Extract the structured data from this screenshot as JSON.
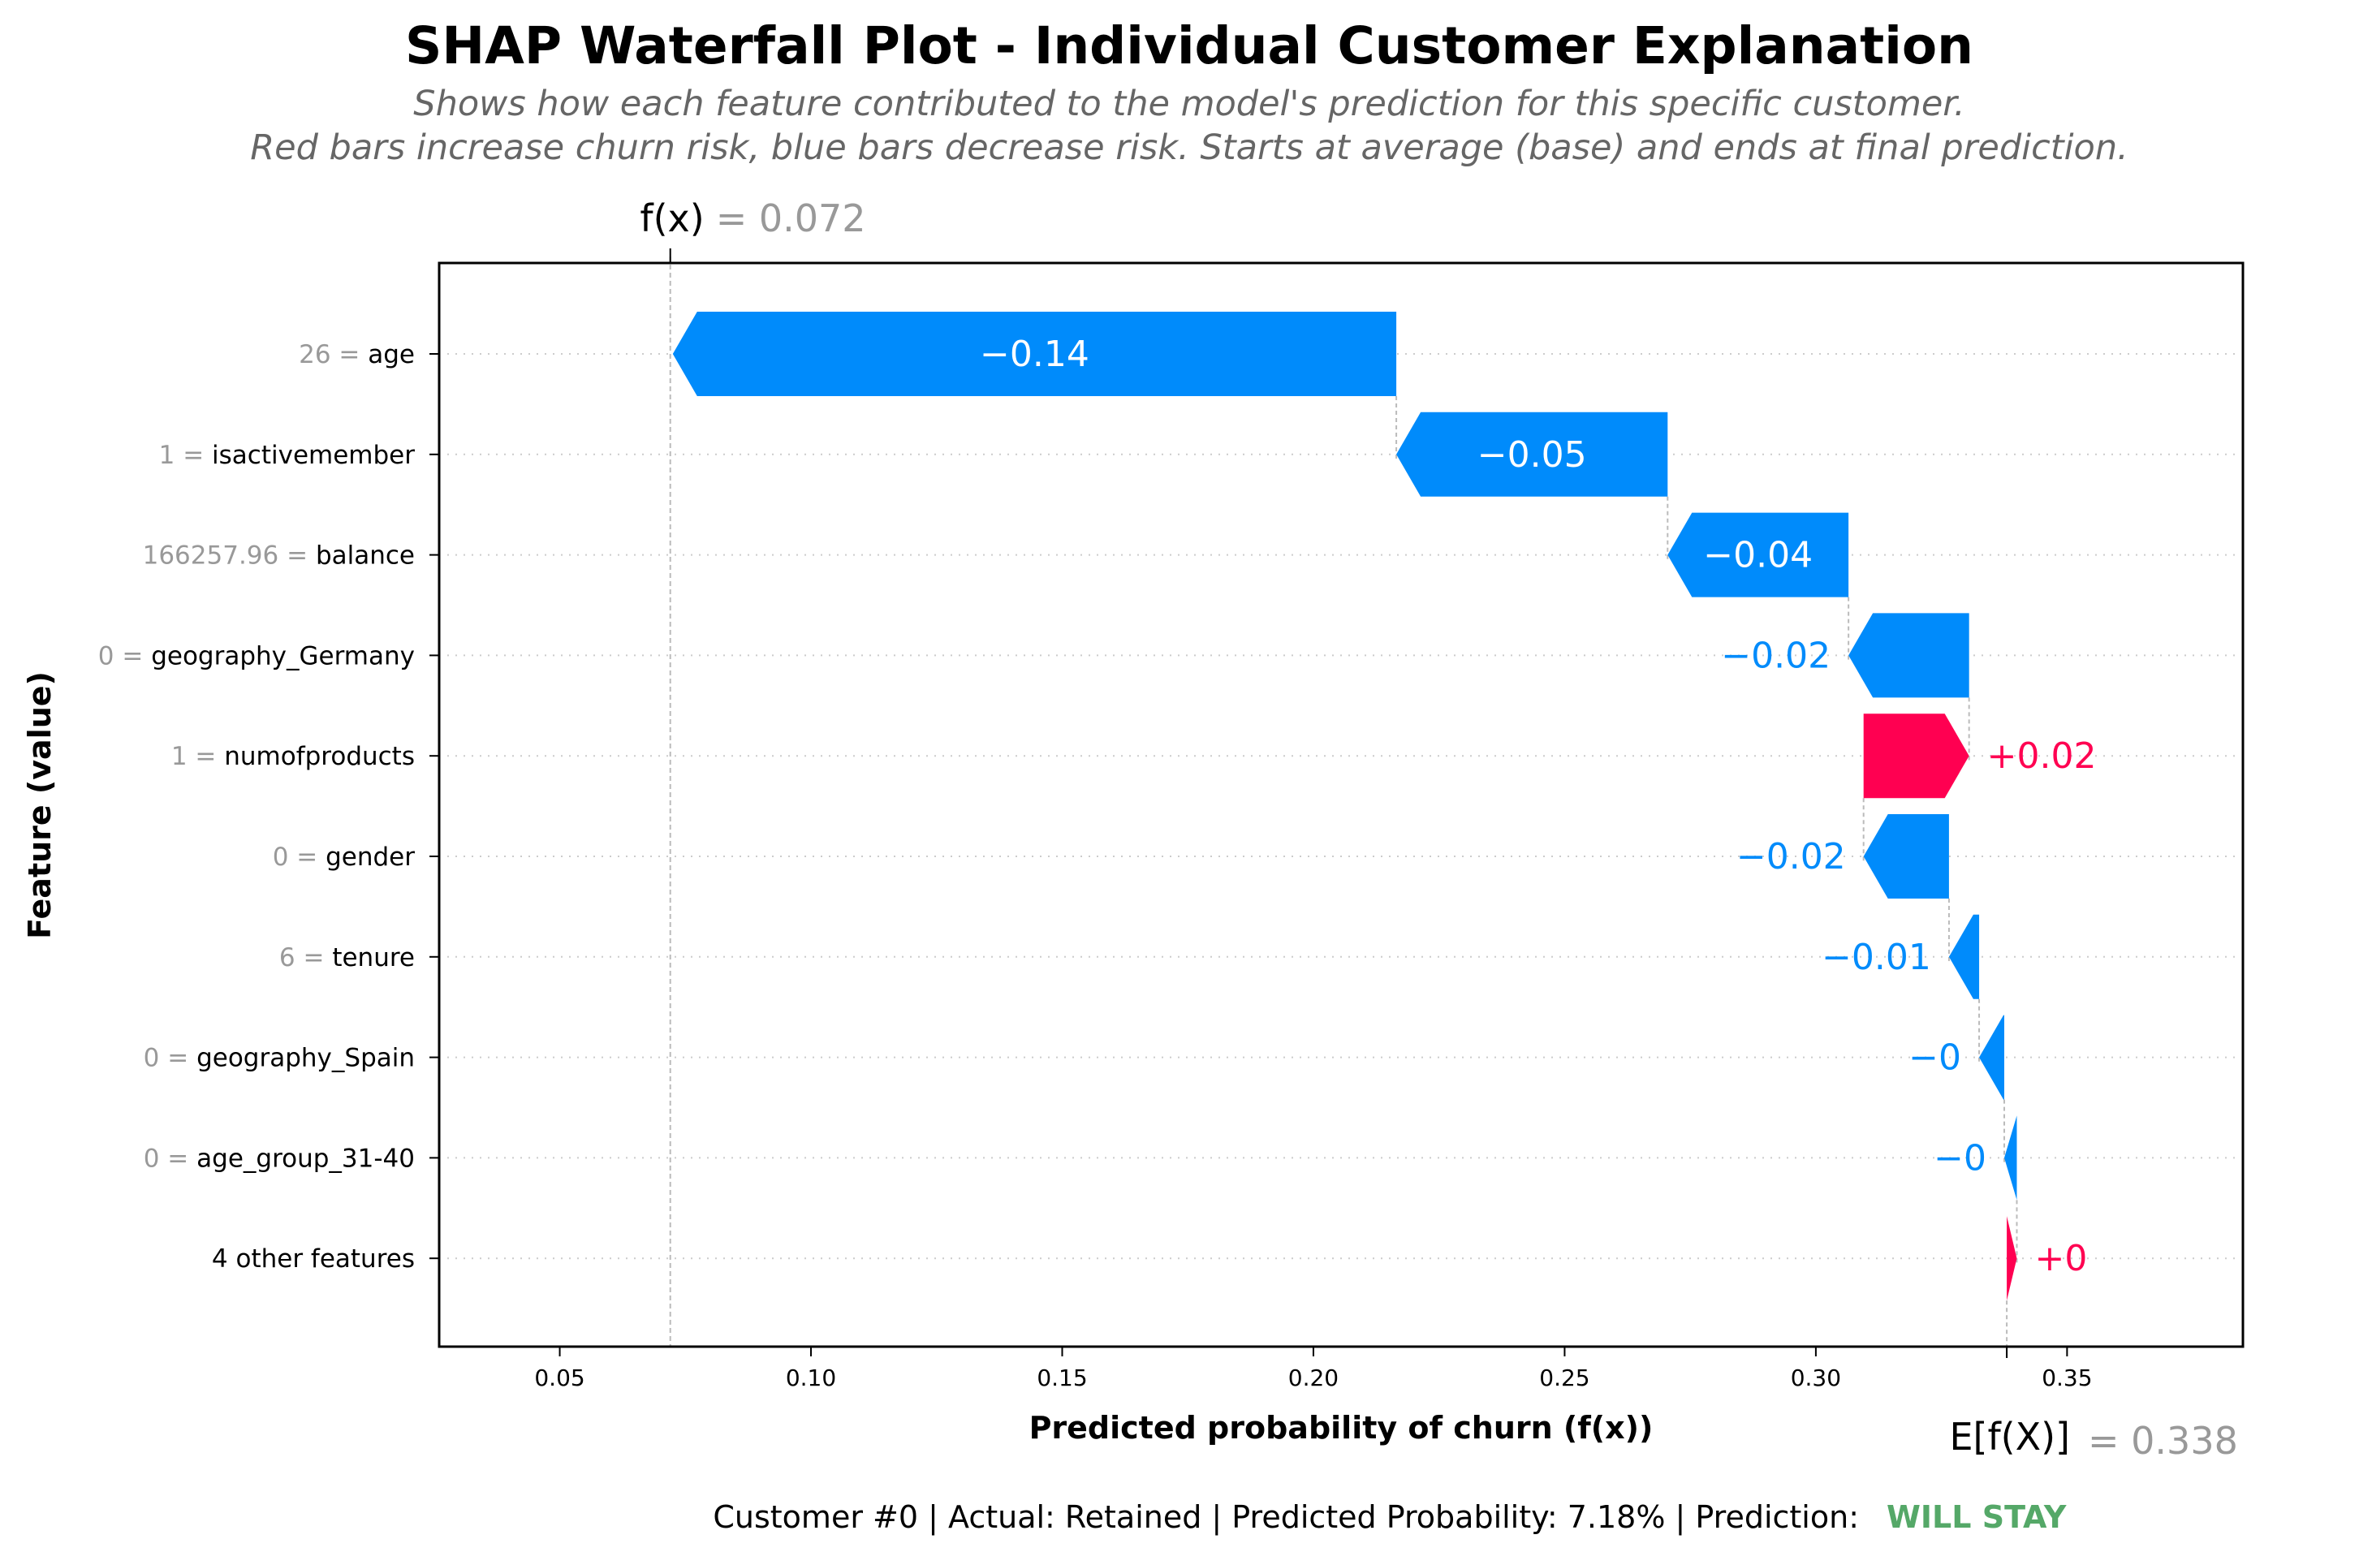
{
  "title": "SHAP Waterfall Plot - Individual Customer Explanation",
  "subtitle_lines": [
    "Shows how each feature contributed to the model's prediction for this specific customer.",
    "Red bars increase churn risk, blue bars decrease risk. Starts at average (base) and ends at final prediction."
  ],
  "footer": {
    "text": "Customer #0 | Actual: Retained | Predicted Probability: 7.18% | Prediction:",
    "prediction": "WILL STAY",
    "prediction_color": "#55a868"
  },
  "colors": {
    "positive": "#ff0051",
    "negative": "#008bfb",
    "feature_value": "#999999"
  },
  "chart_data": {
    "type": "bar",
    "title": "SHAP Waterfall Plot - Individual Customer Explanation",
    "xlabel": "Predicted probability of churn (f(x))",
    "ylabel": "Feature (value)",
    "xlim": [
      0.026,
      0.385
    ],
    "xticks": [
      0.05,
      0.1,
      0.15,
      0.2,
      0.25,
      0.3,
      0.35
    ],
    "xtick_labels": [
      "0.05",
      "0.10",
      "0.15",
      "0.20",
      "0.25",
      "0.30",
      "0.35"
    ],
    "grid": "horizontal dotted",
    "fx": {
      "value": 0.072,
      "label": "f(x)",
      "value_label": "= 0.072"
    },
    "base": {
      "value": 0.338,
      "label": "E[f(X)]",
      "value_label": "= 0.338"
    },
    "rows": [
      {
        "feature": "age",
        "value_text": "26",
        "contribution": -0.144,
        "label": "−0.14"
      },
      {
        "feature": "isactivemember",
        "value_text": "1",
        "contribution": -0.054,
        "label": "−0.05"
      },
      {
        "feature": "balance",
        "value_text": "166257.96",
        "contribution": -0.036,
        "label": "−0.04"
      },
      {
        "feature": "geography_Germany",
        "value_text": "0",
        "contribution": -0.024,
        "label": "−0.02"
      },
      {
        "feature": "numofproducts",
        "value_text": "1",
        "contribution": 0.021,
        "label": "+0.02"
      },
      {
        "feature": "gender",
        "value_text": "0",
        "contribution": -0.017,
        "label": "−0.02"
      },
      {
        "feature": "tenure",
        "value_text": "6",
        "contribution": -0.006,
        "label": "−0.01"
      },
      {
        "feature": "geography_Spain",
        "value_text": "0",
        "contribution": -0.005,
        "label": "−0"
      },
      {
        "feature": "age_group_31-40",
        "value_text": "0",
        "contribution": -0.0025,
        "label": "−0"
      },
      {
        "feature": "4 other features",
        "value_text": "",
        "contribution": 0.002,
        "label": "+0"
      }
    ]
  }
}
